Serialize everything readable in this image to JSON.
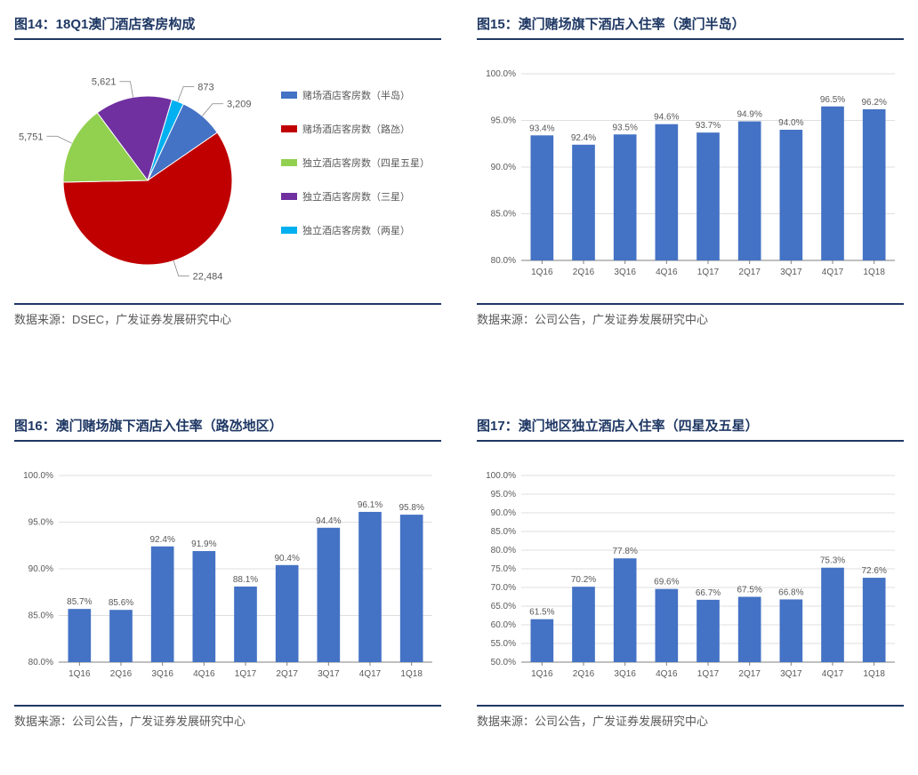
{
  "panels": {
    "p14": {
      "title": "图14：18Q1澳门酒店客房构成",
      "footer": "数据来源：DSEC，广发证券发展研究中心",
      "pie": {
        "type": "pie",
        "start_angle_deg": -65,
        "slices": [
          {
            "label": "赌场酒店客房数（半岛）",
            "value": 3209,
            "value_str": "3,209",
            "color": "#4472c4"
          },
          {
            "label": "赌场酒店客房数（路氹）",
            "value": 22484,
            "value_str": "22,484",
            "color": "#c00000"
          },
          {
            "label": "独立酒店客房数（四星五星）",
            "value": 5751,
            "value_str": "5,751",
            "color": "#92d050"
          },
          {
            "label": "独立酒店客房数（三星）",
            "value": 5621,
            "value_str": "5,621",
            "color": "#7030a0"
          },
          {
            "label": "独立酒店客房数（两星）",
            "value": 873,
            "value_str": "873",
            "color": "#00b0f0"
          }
        ],
        "label_fontsize": 11,
        "legend_fontsize": 11
      }
    },
    "p15": {
      "title": "图15：澳门赌场旗下酒店入住率（澳门半岛）",
      "footer": "数据来源：公司公告，广发证券发展研究中心",
      "chart": {
        "type": "bar",
        "categories": [
          "1Q16",
          "2Q16",
          "3Q16",
          "4Q16",
          "1Q17",
          "2Q17",
          "3Q17",
          "4Q17",
          "1Q18"
        ],
        "values": [
          93.4,
          92.4,
          93.5,
          94.6,
          93.7,
          94.9,
          94.0,
          96.5,
          96.2
        ],
        "value_labels": [
          "93.4%",
          "92.4%",
          "93.5%",
          "94.6%",
          "93.7%",
          "94.9%",
          "94.0%",
          "96.5%",
          "96.2%"
        ],
        "bar_color": "#4472c4",
        "ylim": [
          80,
          100
        ],
        "ytick_step": 5,
        "ytick_format": "pct1",
        "grid_color": "#bfbfbf",
        "label_fontsize": 10,
        "bar_width_ratio": 0.55
      }
    },
    "p16": {
      "title": "图16：澳门赌场旗下酒店入住率（路氹地区）",
      "footer": "数据来源：公司公告，广发证券发展研究中心",
      "chart": {
        "type": "bar",
        "categories": [
          "1Q16",
          "2Q16",
          "3Q16",
          "4Q16",
          "1Q17",
          "2Q17",
          "3Q17",
          "4Q17",
          "1Q18"
        ],
        "values": [
          85.7,
          85.6,
          92.4,
          91.9,
          88.1,
          90.4,
          94.4,
          96.1,
          95.8
        ],
        "value_labels": [
          "85.7%",
          "85.6%",
          "92.4%",
          "91.9%",
          "88.1%",
          "90.4%",
          "94.4%",
          "96.1%",
          "95.8%"
        ],
        "bar_color": "#4472c4",
        "ylim": [
          80,
          100
        ],
        "ytick_step": 5,
        "ytick_format": "pct1",
        "grid_color": "#bfbfbf",
        "label_fontsize": 10,
        "bar_width_ratio": 0.55
      }
    },
    "p17": {
      "title": "图17：澳门地区独立酒店入住率（四星及五星）",
      "footer": "数据来源：公司公告，广发证券发展研究中心",
      "chart": {
        "type": "bar",
        "categories": [
          "1Q16",
          "2Q16",
          "3Q16",
          "4Q16",
          "1Q17",
          "2Q17",
          "3Q17",
          "4Q17",
          "1Q18"
        ],
        "values": [
          61.5,
          70.2,
          77.8,
          69.6,
          66.7,
          67.5,
          66.8,
          75.3,
          72.6
        ],
        "value_labels": [
          "61.5%",
          "70.2%",
          "77.8%",
          "69.6%",
          "66.7%",
          "67.5%",
          "66.8%",
          "75.3%",
          "72.6%"
        ],
        "bar_color": "#4472c4",
        "ylim": [
          50,
          100
        ],
        "ytick_step": 5,
        "ytick_format": "pct1",
        "grid_color": "#bfbfbf",
        "label_fontsize": 10,
        "bar_width_ratio": 0.55
      }
    }
  }
}
